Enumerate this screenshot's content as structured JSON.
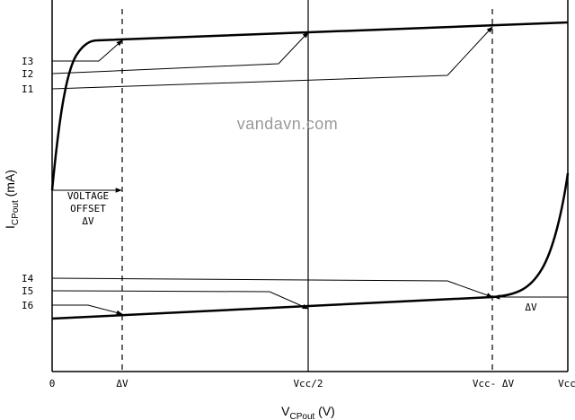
{
  "watermark": "vandavn.com",
  "axes": {
    "y_title": "I",
    "y_sub": "CPout",
    "y_unit": " (mA)",
    "x_title": "V",
    "x_sub": "CPout",
    "x_unit": " (V)"
  },
  "x_ticks": [
    "0",
    "ΔV",
    "Vcc/2",
    "Vcc- ΔV",
    "Vcc"
  ],
  "current_labels": [
    "I3",
    "I2",
    "I1",
    "I4",
    "I5",
    "I6"
  ],
  "annotations": {
    "offset_line1": "VOLTAGE",
    "offset_line2": "OFFSET",
    "offset_line3": "ΔV",
    "delta_v_right": "ΔV"
  }
}
